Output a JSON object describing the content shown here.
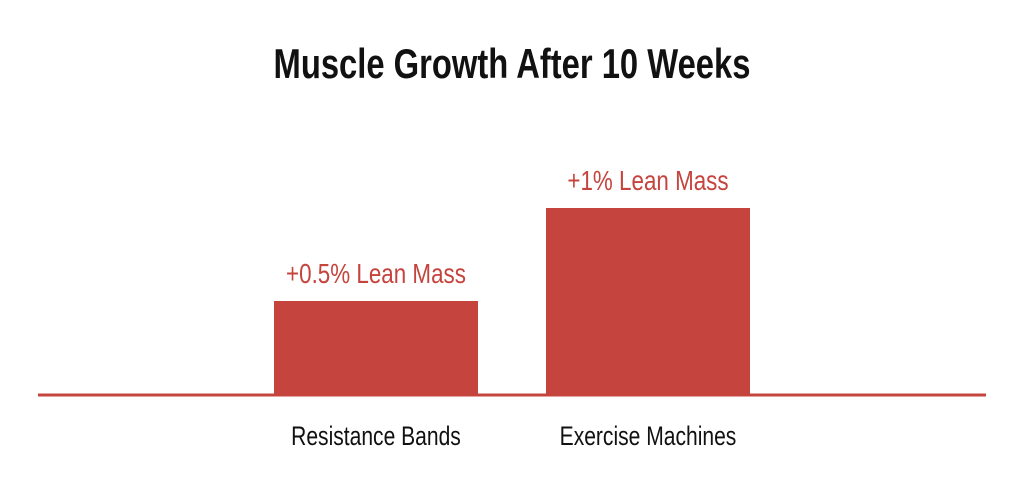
{
  "chart_data": {
    "type": "bar",
    "title": "Muscle Growth After 10 Weeks",
    "categories": [
      "Resistance Bands",
      "Exercise Machines"
    ],
    "values": [
      0.5,
      1
    ],
    "unit": "% lean mass",
    "data_labels": [
      "+0.5% Lean Mass",
      "+1% Lean Mass"
    ],
    "xlabel": "",
    "ylabel": "",
    "ylim": [
      0,
      1
    ],
    "grid": false,
    "legend": "none",
    "colors": {
      "bar": "#c5443d",
      "baseline": "#c5443d",
      "label": "#c5443d",
      "title": "#111111",
      "category": "#111111"
    }
  }
}
